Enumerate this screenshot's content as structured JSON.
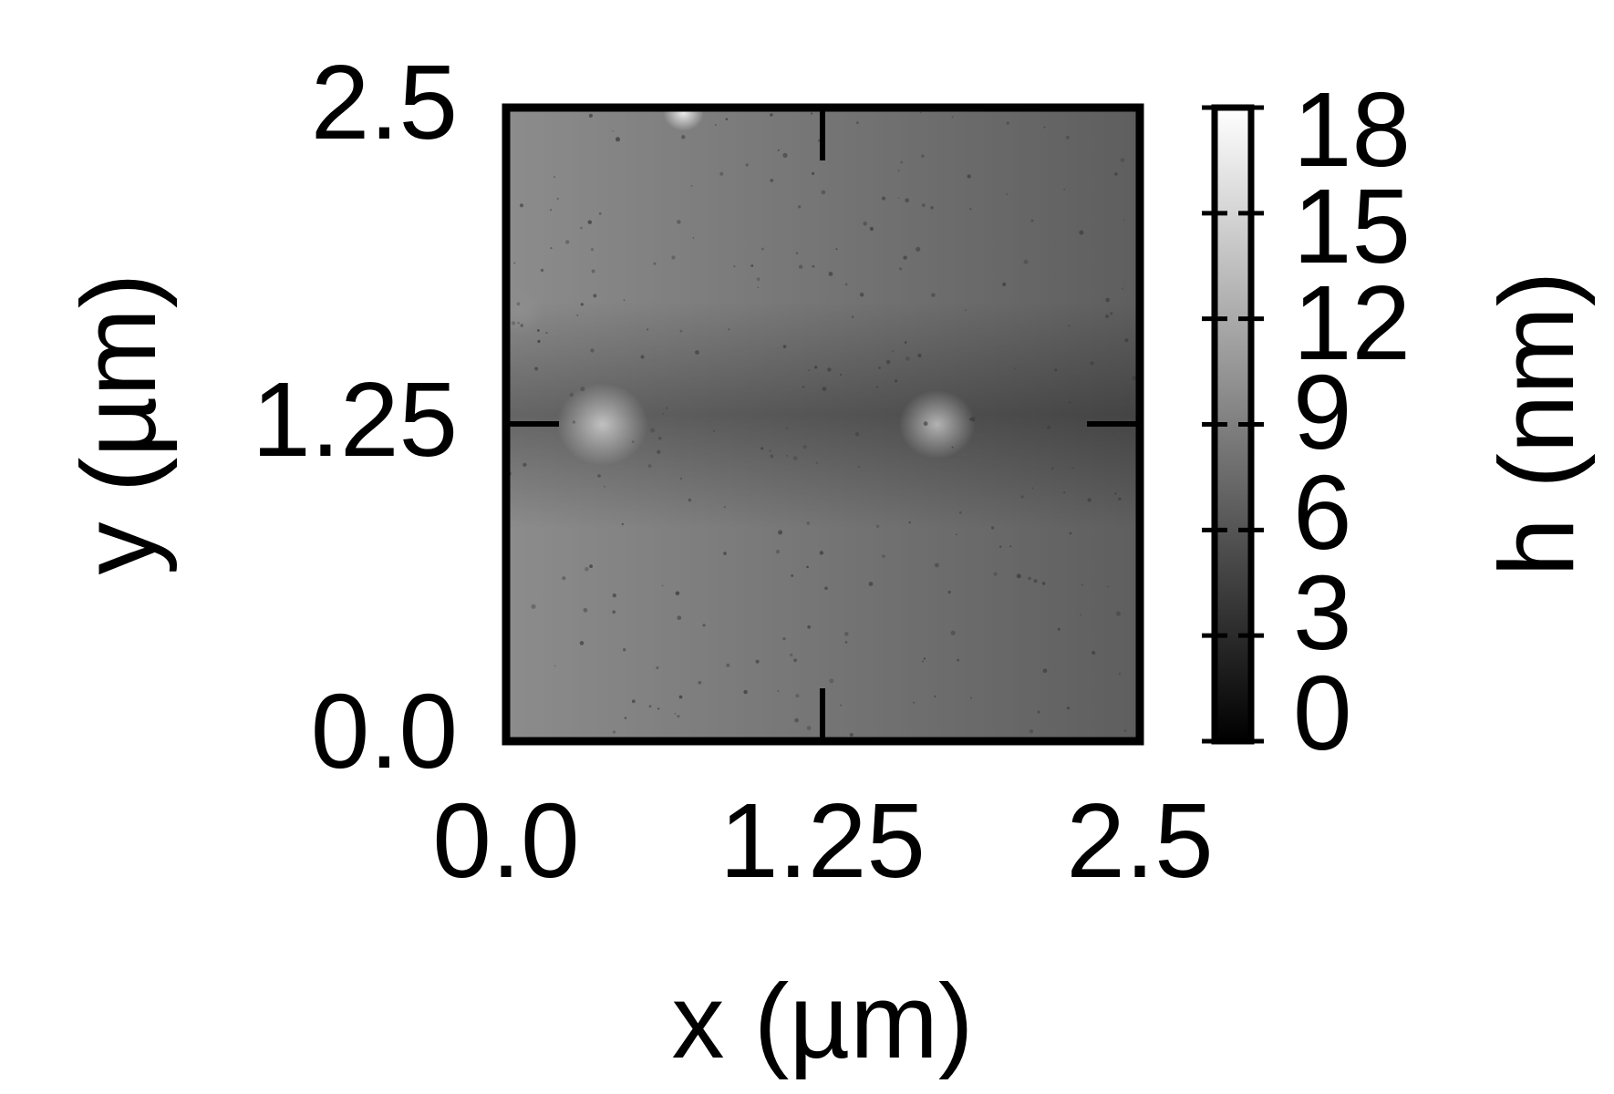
{
  "chart_data": {
    "type": "heatmap",
    "colormap": "grayscale",
    "xlabel": "x (µm)",
    "ylabel": "y (µm)",
    "colorbar_label": "h (nm)",
    "xlim": [
      0.0,
      2.5
    ],
    "ylim": [
      0.0,
      2.5
    ],
    "x_ticks": [
      "0.0",
      "1.25",
      "2.5"
    ],
    "y_ticks": [
      "0.0",
      "1.25",
      "2.5"
    ],
    "colorbar_range": [
      0,
      18
    ],
    "colorbar_ticks": [
      "0",
      "3",
      "6",
      "9",
      "12",
      "15",
      "18"
    ],
    "grid": false,
    "features": [
      {
        "x": 0.38,
        "y": 1.25,
        "h": 14,
        "spread": 0.18
      },
      {
        "x": 1.7,
        "y": 1.25,
        "h": 13,
        "spread": 0.15
      },
      {
        "x": 0.7,
        "y": 2.48,
        "h": 17,
        "spread": 0.08
      },
      {
        "x": 0.05,
        "y": 1.7,
        "h": 10,
        "spread": 0.1
      }
    ]
  }
}
